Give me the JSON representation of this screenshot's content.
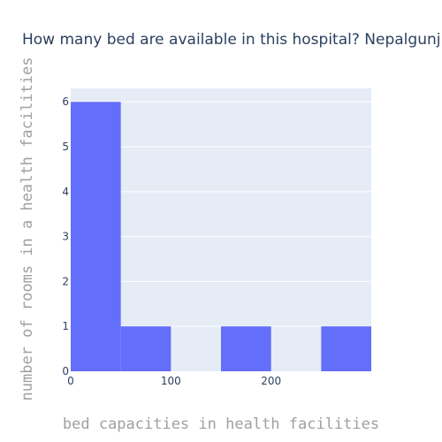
{
  "chart_data": {
    "type": "bar",
    "title": "How many bed are available in this hospital? Nepalgunj",
    "xlabel": "bed capacities in health facilities",
    "ylabel": "number of rooms in a health facilities",
    "bins": [
      {
        "start": 0,
        "end": 50,
        "count": 6
      },
      {
        "start": 50,
        "end": 100,
        "count": 1
      },
      {
        "start": 100,
        "end": 150,
        "count": 0
      },
      {
        "start": 150,
        "end": 200,
        "count": 1
      },
      {
        "start": 200,
        "end": 250,
        "count": 0
      },
      {
        "start": 250,
        "end": 300,
        "count": 1
      }
    ],
    "xlim": [
      0,
      300
    ],
    "ylim": [
      0,
      6.3
    ],
    "xticks": [
      0,
      100,
      200
    ],
    "yticks": [
      0,
      1,
      2,
      3,
      4,
      5,
      6
    ],
    "grid": true,
    "legend": "none",
    "colors": {
      "bar": "#636efa",
      "plot_bg": "#e5ecf6",
      "grid": "#ffffff",
      "title": "#2a3f5f",
      "axis_title": "#a0a0a0"
    }
  }
}
